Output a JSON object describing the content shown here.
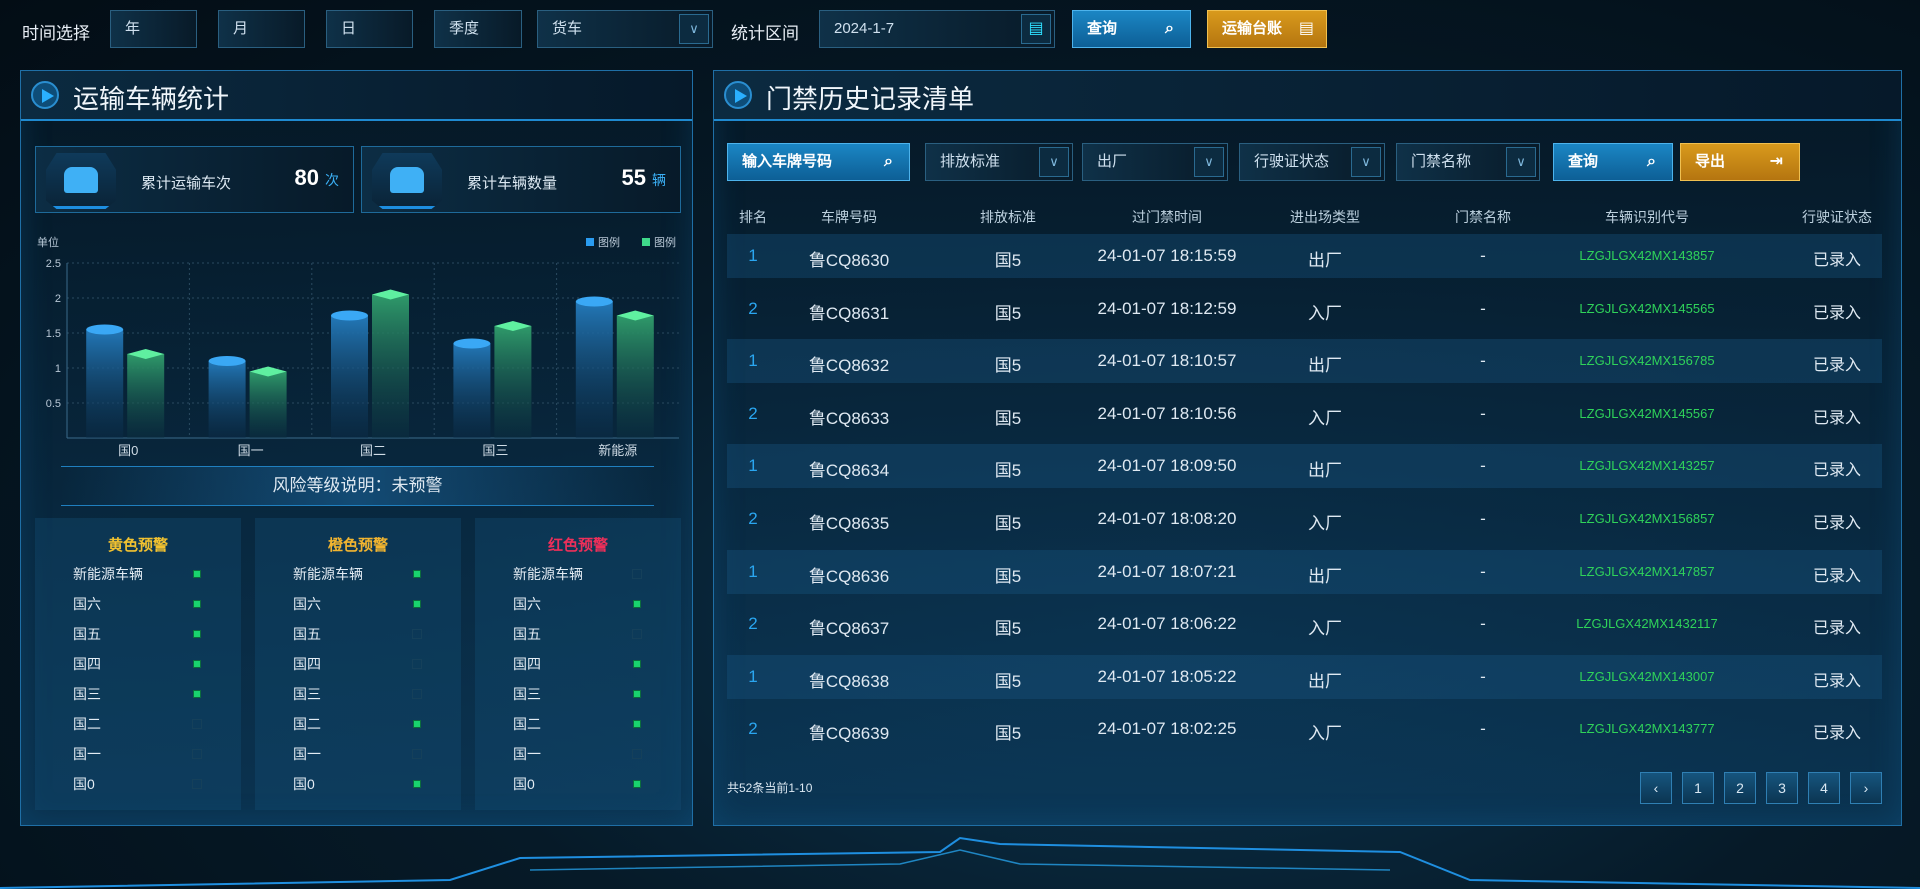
{
  "toolbar": {
    "time_label": "时间选择",
    "year": "年",
    "month": "月",
    "day": "日",
    "quarter": "季度",
    "vehicle_type": "货车",
    "range_label": "统计区间",
    "date": "2024-1-7",
    "query": "查询",
    "ledger": "运输台账"
  },
  "left": {
    "title": "运输车辆统计",
    "stats": [
      {
        "label": "累计运输车次",
        "value": "80",
        "unit": "次"
      },
      {
        "label": "累计车辆数量",
        "value": "55",
        "unit": "辆"
      }
    ],
    "risk_banner": "风险等级说明：未预警",
    "risk_groups": [
      {
        "title": "黄色预警",
        "color": "#f2c230",
        "checks": [
          true,
          true,
          true,
          true,
          true,
          false,
          false,
          false
        ]
      },
      {
        "title": "橙色预警",
        "color": "#f2b530",
        "checks": [
          true,
          true,
          false,
          false,
          false,
          true,
          false,
          true
        ]
      },
      {
        "title": "红色预警",
        "color": "#ee2f5a",
        "checks": [
          false,
          true,
          false,
          true,
          true,
          true,
          false,
          true
        ]
      }
    ],
    "risk_items": [
      "新能源车辆",
      "国六",
      "国五",
      "国四",
      "国三",
      "国二",
      "国一",
      "国0"
    ]
  },
  "chart_data": {
    "type": "bar",
    "ylabel": "单位",
    "categories": [
      "国0",
      "国一",
      "国二",
      "国三",
      "新能源"
    ],
    "ylim": [
      0,
      2.5
    ],
    "yticks": [
      0.5,
      1,
      1.5,
      2,
      2.5
    ],
    "grid": true,
    "legend": "top-right",
    "series": [
      {
        "name": "图例",
        "color": "#2a9cf0",
        "values": [
          1.55,
          1.1,
          1.75,
          1.35,
          1.95
        ]
      },
      {
        "name": "图例",
        "color": "#3fd98a",
        "values": [
          1.2,
          0.95,
          2.05,
          1.6,
          1.75
        ]
      }
    ]
  },
  "right": {
    "title": "门禁历史记录清单",
    "filters": {
      "plate_placeholder": "输入车牌号码",
      "emission": "排放标准",
      "direction": "出厂",
      "license": "行驶证状态",
      "gate": "门禁名称",
      "query": "查询",
      "export": "导出"
    },
    "columns": [
      "排名",
      "车牌号码",
      "排放标准",
      "过门禁时间",
      "进出场类型",
      "门禁名称",
      "车辆识别代号",
      "行驶证状态"
    ],
    "rows": [
      [
        "1",
        "鲁CQ8630",
        "国5",
        "24-01-07 18:15:59",
        "出厂",
        "-",
        "LZGJLGX42MX143857",
        "已录入"
      ],
      [
        "2",
        "鲁CQ8631",
        "国5",
        "24-01-07 18:12:59",
        "入厂",
        "-",
        "LZGJLGX42MX145565",
        "已录入"
      ],
      [
        "1",
        "鲁CQ8632",
        "国5",
        "24-01-07 18:10:57",
        "出厂",
        "-",
        "LZGJLGX42MX156785",
        "已录入"
      ],
      [
        "2",
        "鲁CQ8633",
        "国5",
        "24-01-07 18:10:56",
        "入厂",
        "-",
        "LZGJLGX42MX145567",
        "已录入"
      ],
      [
        "1",
        "鲁CQ8634",
        "国5",
        "24-01-07 18:09:50",
        "出厂",
        "-",
        "LZGJLGX42MX143257",
        "已录入"
      ],
      [
        "2",
        "鲁CQ8635",
        "国5",
        "24-01-07 18:08:20",
        "入厂",
        "-",
        "LZGJLGX42MX156857",
        "已录入"
      ],
      [
        "1",
        "鲁CQ8636",
        "国5",
        "24-01-07 18:07:21",
        "出厂",
        "-",
        "LZGJLGX42MX147857",
        "已录入"
      ],
      [
        "2",
        "鲁CQ8637",
        "国5",
        "24-01-07 18:06:22",
        "入厂",
        "-",
        "LZGJLGX42MX1432117",
        "已录入"
      ],
      [
        "1",
        "鲁CQ8638",
        "国5",
        "24-01-07 18:05:22",
        "出厂",
        "-",
        "LZGJLGX42MX143007",
        "已录入"
      ],
      [
        "2",
        "鲁CQ8639",
        "国5",
        "24-01-07 18:02:25",
        "入厂",
        "-",
        "LZGJLGX42MX143777",
        "已录入"
      ]
    ],
    "footer": "共52条当前1-10",
    "pages": [
      "1",
      "2",
      "3",
      "4"
    ],
    "prev": "‹",
    "next": "›"
  }
}
